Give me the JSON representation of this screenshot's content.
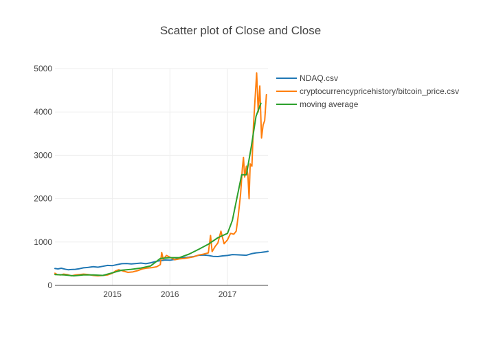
{
  "chart_data": {
    "type": "line",
    "title": "Scatter plot of Close and Close",
    "xlabel": "",
    "ylabel": "",
    "xlim": [
      "2014-01-01",
      "2017-09-15"
    ],
    "ylim": [
      0,
      5000
    ],
    "x_ticks": [
      "2015",
      "2016",
      "2017"
    ],
    "x_tick_dates": [
      "2015-01-01",
      "2016-01-01",
      "2017-01-01"
    ],
    "y_ticks": [
      0,
      1000,
      2000,
      3000,
      4000,
      5000
    ],
    "y_tick_labels": [
      "0",
      "1000",
      "2000",
      "3000",
      "4000",
      "5000"
    ],
    "grid": true,
    "legend_position": "top-right, outside plot",
    "series": [
      {
        "name": "NDAQ.csv",
        "color": "#1f77b4",
        "points": [
          [
            "2014-01-01",
            390
          ],
          [
            "2014-01-20",
            380
          ],
          [
            "2014-02-10",
            395
          ],
          [
            "2014-03-05",
            375
          ],
          [
            "2014-03-25",
            360
          ],
          [
            "2014-04-15",
            365
          ],
          [
            "2014-05-10",
            370
          ],
          [
            "2014-06-05",
            385
          ],
          [
            "2014-07-01",
            405
          ],
          [
            "2014-08-01",
            415
          ],
          [
            "2014-09-01",
            430
          ],
          [
            "2014-10-01",
            420
          ],
          [
            "2014-11-01",
            440
          ],
          [
            "2014-12-01",
            460
          ],
          [
            "2015-01-01",
            455
          ],
          [
            "2015-02-01",
            480
          ],
          [
            "2015-03-01",
            500
          ],
          [
            "2015-04-01",
            505
          ],
          [
            "2015-05-01",
            495
          ],
          [
            "2015-06-01",
            505
          ],
          [
            "2015-07-01",
            515
          ],
          [
            "2015-08-01",
            500
          ],
          [
            "2015-09-01",
            520
          ],
          [
            "2015-10-01",
            550
          ],
          [
            "2015-11-01",
            570
          ],
          [
            "2015-12-01",
            585
          ],
          [
            "2016-01-01",
            580
          ],
          [
            "2016-02-01",
            600
          ],
          [
            "2016-03-01",
            625
          ],
          [
            "2016-04-01",
            640
          ],
          [
            "2016-05-01",
            650
          ],
          [
            "2016-06-01",
            665
          ],
          [
            "2016-07-01",
            695
          ],
          [
            "2016-08-01",
            700
          ],
          [
            "2016-09-01",
            690
          ],
          [
            "2016-10-01",
            670
          ],
          [
            "2016-11-01",
            665
          ],
          [
            "2016-12-01",
            680
          ],
          [
            "2017-01-01",
            690
          ],
          [
            "2017-02-01",
            710
          ],
          [
            "2017-03-01",
            705
          ],
          [
            "2017-04-01",
            700
          ],
          [
            "2017-05-01",
            695
          ],
          [
            "2017-06-01",
            730
          ],
          [
            "2017-07-01",
            750
          ],
          [
            "2017-08-01",
            760
          ],
          [
            "2017-09-01",
            775
          ],
          [
            "2017-09-15",
            785
          ]
        ]
      },
      {
        "name": "cryptocurrencypricehistory/bitcoin_price.csv",
        "color": "#ff7f0e",
        "points": [
          [
            "2014-01-01",
            280
          ],
          [
            "2014-01-15",
            250
          ],
          [
            "2014-02-05",
            240
          ],
          [
            "2014-02-25",
            260
          ],
          [
            "2014-03-20",
            250
          ],
          [
            "2014-04-15",
            220
          ],
          [
            "2014-05-10",
            240
          ],
          [
            "2014-06-05",
            250
          ],
          [
            "2014-07-01",
            260
          ],
          [
            "2014-08-01",
            250
          ],
          [
            "2014-09-01",
            230
          ],
          [
            "2014-10-01",
            220
          ],
          [
            "2014-11-01",
            230
          ],
          [
            "2014-12-01",
            240
          ],
          [
            "2015-01-01",
            280
          ],
          [
            "2015-01-20",
            330
          ],
          [
            "2015-02-10",
            360
          ],
          [
            "2015-03-10",
            330
          ],
          [
            "2015-04-10",
            300
          ],
          [
            "2015-05-10",
            310
          ],
          [
            "2015-06-10",
            340
          ],
          [
            "2015-07-10",
            380
          ],
          [
            "2015-08-10",
            400
          ],
          [
            "2015-09-10",
            410
          ],
          [
            "2015-10-10",
            430
          ],
          [
            "2015-11-01",
            480
          ],
          [
            "2015-11-10",
            760
          ],
          [
            "2015-11-20",
            600
          ],
          [
            "2015-12-10",
            690
          ],
          [
            "2016-01-01",
            650
          ],
          [
            "2016-02-01",
            590
          ],
          [
            "2016-03-01",
            610
          ],
          [
            "2016-04-01",
            620
          ],
          [
            "2016-05-01",
            640
          ],
          [
            "2016-06-01",
            660
          ],
          [
            "2016-07-01",
            700
          ],
          [
            "2016-08-01",
            720
          ],
          [
            "2016-09-01",
            750
          ],
          [
            "2016-09-15",
            1150
          ],
          [
            "2016-09-25",
            780
          ],
          [
            "2016-10-15",
            900
          ],
          [
            "2016-11-01",
            980
          ],
          [
            "2016-11-20",
            1250
          ],
          [
            "2016-12-10",
            960
          ],
          [
            "2017-01-01",
            1050
          ],
          [
            "2017-01-20",
            1200
          ],
          [
            "2017-02-10",
            1180
          ],
          [
            "2017-02-25",
            1250
          ],
          [
            "2017-03-10",
            1600
          ],
          [
            "2017-03-25",
            2100
          ],
          [
            "2017-04-05",
            2700
          ],
          [
            "2017-04-12",
            2950
          ],
          [
            "2017-04-20",
            2500
          ],
          [
            "2017-05-01",
            2750
          ],
          [
            "2017-05-10",
            2550
          ],
          [
            "2017-05-18",
            2000
          ],
          [
            "2017-05-25",
            2800
          ],
          [
            "2017-06-05",
            2750
          ],
          [
            "2017-06-15",
            3700
          ],
          [
            "2017-06-25",
            4300
          ],
          [
            "2017-07-05",
            4900
          ],
          [
            "2017-07-15",
            4000
          ],
          [
            "2017-07-25",
            4600
          ],
          [
            "2017-08-05",
            3400
          ],
          [
            "2017-08-15",
            3700
          ],
          [
            "2017-08-25",
            3800
          ],
          [
            "2017-09-05",
            4400
          ]
        ]
      },
      {
        "name": "moving average",
        "color": "#2ca02c",
        "points": [
          [
            "2014-01-01",
            250
          ],
          [
            "2014-03-01",
            240
          ],
          [
            "2014-05-01",
            220
          ],
          [
            "2014-07-01",
            240
          ],
          [
            "2014-09-01",
            240
          ],
          [
            "2014-11-01",
            230
          ],
          [
            "2015-01-01",
            290
          ],
          [
            "2015-03-01",
            350
          ],
          [
            "2015-05-01",
            370
          ],
          [
            "2015-07-01",
            400
          ],
          [
            "2015-09-01",
            450
          ],
          [
            "2015-11-01",
            620
          ],
          [
            "2016-01-01",
            640
          ],
          [
            "2016-03-01",
            640
          ],
          [
            "2016-05-01",
            720
          ],
          [
            "2016-07-01",
            830
          ],
          [
            "2016-09-01",
            950
          ],
          [
            "2016-11-01",
            1100
          ],
          [
            "2017-01-01",
            1200
          ],
          [
            "2017-02-01",
            1500
          ],
          [
            "2017-03-01",
            2000
          ],
          [
            "2017-04-01",
            2550
          ],
          [
            "2017-05-01",
            2550
          ],
          [
            "2017-06-01",
            3200
          ],
          [
            "2017-07-01",
            3900
          ],
          [
            "2017-08-01",
            4200
          ]
        ]
      }
    ]
  }
}
